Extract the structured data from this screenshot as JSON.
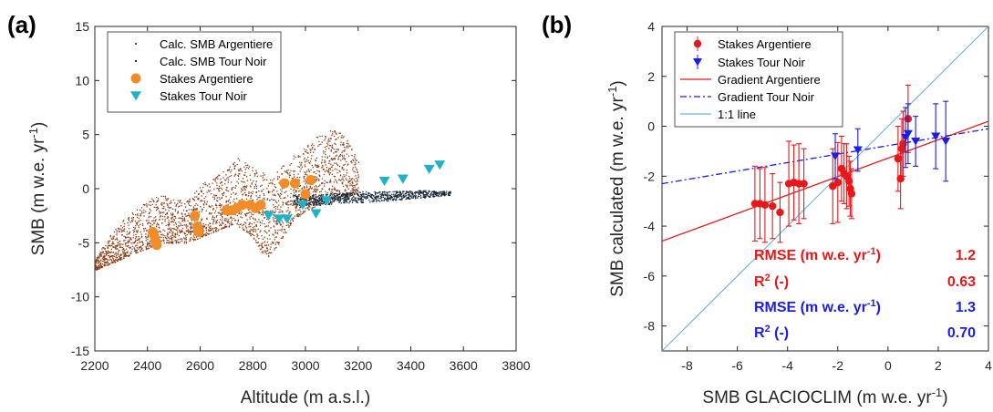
{
  "chart_data": [
    {
      "panel": "(a)",
      "type": "scatter",
      "xlabel": "Altitude (m a.s.l.)",
      "ylabel_main": "SMB (m w.e. yr",
      "ylabel_sup": "-1",
      "ylabel_end": ")",
      "xlim": [
        2200,
        3800
      ],
      "ylim": [
        -15,
        15
      ],
      "xticks": [
        2200,
        2400,
        2600,
        2800,
        3000,
        3200,
        3400,
        3600,
        3800
      ],
      "yticks": [
        -15,
        -10,
        -5,
        0,
        5,
        10,
        15
      ],
      "legend_position": "top-left",
      "series": [
        {
          "name": "Calc. SMB Argentiere",
          "marker": "dot",
          "color": "#8B3A12",
          "envelope": [
            {
              "x": 2200,
              "lo": -7.5,
              "hi": -6.5
            },
            {
              "x": 2250,
              "lo": -7,
              "hi": -4.5
            },
            {
              "x": 2300,
              "lo": -6.5,
              "hi": -3
            },
            {
              "x": 2350,
              "lo": -6,
              "hi": -2
            },
            {
              "x": 2400,
              "lo": -5.5,
              "hi": -1
            },
            {
              "x": 2450,
              "lo": -5,
              "hi": -0.5
            },
            {
              "x": 2500,
              "lo": -5,
              "hi": -1
            },
            {
              "x": 2550,
              "lo": -5,
              "hi": -1
            },
            {
              "x": 2600,
              "lo": -4.5,
              "hi": 0.5
            },
            {
              "x": 2650,
              "lo": -4,
              "hi": 1
            },
            {
              "x": 2700,
              "lo": -3.5,
              "hi": 2
            },
            {
              "x": 2750,
              "lo": -3.5,
              "hi": 3
            },
            {
              "x": 2800,
              "lo": -4.5,
              "hi": 2
            },
            {
              "x": 2850,
              "lo": -6.5,
              "hi": 1.5
            },
            {
              "x": 2900,
              "lo": -5,
              "hi": 2
            },
            {
              "x": 2950,
              "lo": -3,
              "hi": 3
            },
            {
              "x": 3000,
              "lo": -2,
              "hi": 4
            },
            {
              "x": 3050,
              "lo": -1.5,
              "hi": 5
            },
            {
              "x": 3100,
              "lo": -1,
              "hi": 5.5
            },
            {
              "x": 3150,
              "lo": -0.5,
              "hi": 5
            },
            {
              "x": 3200,
              "lo": -0.5,
              "hi": 2.5
            }
          ]
        },
        {
          "name": "Calc. SMB Tour Noir",
          "marker": "dot",
          "color": "#1a2a3a",
          "envelope": [
            {
              "x": 2950,
              "lo": -1.5,
              "hi": -0.5
            },
            {
              "x": 3050,
              "lo": -1.5,
              "hi": -0.5
            },
            {
              "x": 3150,
              "lo": -1.3,
              "hi": -0.3
            },
            {
              "x": 3250,
              "lo": -1.2,
              "hi": -0.2
            },
            {
              "x": 3350,
              "lo": -1,
              "hi": -0.2
            },
            {
              "x": 3450,
              "lo": -0.8,
              "hi": -0.1
            },
            {
              "x": 3550,
              "lo": -0.6,
              "hi": -0.2
            }
          ]
        },
        {
          "name": "Stakes Argentiere",
          "marker": "circle",
          "color": "#F28C28",
          "points": [
            [
              2420,
              -4.0
            ],
            [
              2425,
              -4.3
            ],
            [
              2430,
              -4.8
            ],
            [
              2435,
              -5.2
            ],
            [
              2580,
              -2.5
            ],
            [
              2590,
              -3.5
            ],
            [
              2595,
              -4.0
            ],
            [
              2700,
              -2.0
            ],
            [
              2720,
              -2.0
            ],
            [
              2740,
              -1.8
            ],
            [
              2760,
              -1.5
            ],
            [
              2790,
              -1.5
            ],
            [
              2810,
              -1.8
            ],
            [
              2830,
              -1.5
            ],
            [
              2920,
              0.5
            ],
            [
              2960,
              0.5
            ],
            [
              3000,
              -0.5
            ],
            [
              3020,
              0.8
            ]
          ]
        },
        {
          "name": "Stakes Tour Noir",
          "marker": "triangle-down",
          "color": "#1FB3C8",
          "points": [
            [
              2860,
              -2.5
            ],
            [
              2900,
              -2.8
            ],
            [
              2930,
              -2.8
            ],
            [
              2990,
              -1.5
            ],
            [
              3040,
              -2.3
            ],
            [
              3080,
              -1.1
            ],
            [
              3300,
              0.7
            ],
            [
              3370,
              0.9
            ],
            [
              3470,
              1.8
            ],
            [
              3510,
              2.2
            ]
          ]
        }
      ]
    },
    {
      "panel": "(b)",
      "type": "scatter",
      "xlabel_main": "SMB GLACIOCLIM (m w.e. yr",
      "xlabel_sup": "-1",
      "xlabel_end": ")",
      "ylabel_main": "SMB calculated (m w.e. yr",
      "ylabel_sup": "-1",
      "ylabel_end": ")",
      "xlim": [
        -9,
        4
      ],
      "ylim": [
        -9,
        4
      ],
      "xticks": [
        -8,
        -6,
        -4,
        -2,
        0,
        2,
        4
      ],
      "yticks": [
        -8,
        -6,
        -4,
        -2,
        0,
        2,
        4
      ],
      "legend_position": "top-left",
      "series": [
        {
          "name": "Stakes Argentiere",
          "marker": "circle-errorbar",
          "color": "#E8181A",
          "points": [
            {
              "x": -5.3,
              "y": -3.1,
              "err": 1.5
            },
            {
              "x": -5.1,
              "y": -3.1,
              "err": 1.4
            },
            {
              "x": -4.9,
              "y": -3.15,
              "err": 1.5
            },
            {
              "x": -4.6,
              "y": -3.2,
              "err": 1.3
            },
            {
              "x": -4.3,
              "y": -3.45,
              "err": 1.2
            },
            {
              "x": -3.95,
              "y": -2.3,
              "err": 1.7
            },
            {
              "x": -3.75,
              "y": -2.25,
              "err": 1.5
            },
            {
              "x": -3.55,
              "y": -2.3,
              "err": 1.6
            },
            {
              "x": -3.35,
              "y": -2.3,
              "err": 1.4
            },
            {
              "x": -2.2,
              "y": -2.4,
              "err": 1.5
            },
            {
              "x": -2.0,
              "y": -2.25,
              "err": 1.6
            },
            {
              "x": -1.85,
              "y": -1.7,
              "err": 1.3
            },
            {
              "x": -1.75,
              "y": -1.9,
              "err": 1.2
            },
            {
              "x": -1.65,
              "y": -2.0,
              "err": 1.3
            },
            {
              "x": -1.55,
              "y": -2.2,
              "err": 1.0
            },
            {
              "x": -1.5,
              "y": -2.5,
              "err": 1.1
            },
            {
              "x": -1.45,
              "y": -2.7,
              "err": 1.0
            },
            {
              "x": 0.4,
              "y": -1.3,
              "err": 1.3
            },
            {
              "x": 0.5,
              "y": -2.1,
              "err": 1.2
            },
            {
              "x": 0.55,
              "y": -0.9,
              "err": 1.2
            },
            {
              "x": 0.6,
              "y": -0.7,
              "err": 1.3
            },
            {
              "x": 0.8,
              "y": 0.3,
              "err": 1.35
            }
          ]
        },
        {
          "name": "Stakes Tour Noir",
          "marker": "triangle-errorbar",
          "color": "#1C1CE8",
          "points": [
            {
              "x": -2.1,
              "y": -1.2,
              "err": 0.9
            },
            {
              "x": -1.2,
              "y": -0.95,
              "err": 0.85
            },
            {
              "x": 0.7,
              "y": -0.45,
              "err": 1.2
            },
            {
              "x": 0.8,
              "y": -0.3,
              "err": 1.2
            },
            {
              "x": 1.1,
              "y": -0.6,
              "err": 1.0
            },
            {
              "x": 1.9,
              "y": -0.4,
              "err": 1.3
            },
            {
              "x": 2.3,
              "y": -0.6,
              "err": 1.6
            }
          ]
        },
        {
          "name": "Gradient Argentiere",
          "marker": "line-solid",
          "color": "#E8181A",
          "line": [
            [
              -9,
              -4.6
            ],
            [
              4,
              0.2
            ]
          ]
        },
        {
          "name": "Gradient Tour Noir",
          "marker": "line-dashdot",
          "color": "#1C1CE8",
          "line": [
            [
              -9,
              -2.3
            ],
            [
              4,
              -0.1
            ]
          ]
        },
        {
          "name": "1:1 line",
          "marker": "line-thin",
          "color": "#6BB2D6",
          "line": [
            [
              -9,
              -9
            ],
            [
              4,
              4
            ]
          ]
        }
      ],
      "stats": [
        {
          "label_main": "RMSE (m w.e. yr",
          "label_sup": "-1",
          "label_end": ")",
          "value": "1.2",
          "color": "#E8181A"
        },
        {
          "label_main": "R",
          "label_sup": "2",
          "label_end": " (-)",
          "value": "0.63",
          "color": "#E8181A"
        },
        {
          "label_main": "RMSE (m w.e. yr",
          "label_sup": "-1",
          "label_end": ")",
          "value": "1.3",
          "color": "#1C1CE8"
        },
        {
          "label_main": "R",
          "label_sup": "2",
          "label_end": " (-)",
          "value": "0.70",
          "color": "#1C1CE8"
        }
      ]
    }
  ]
}
